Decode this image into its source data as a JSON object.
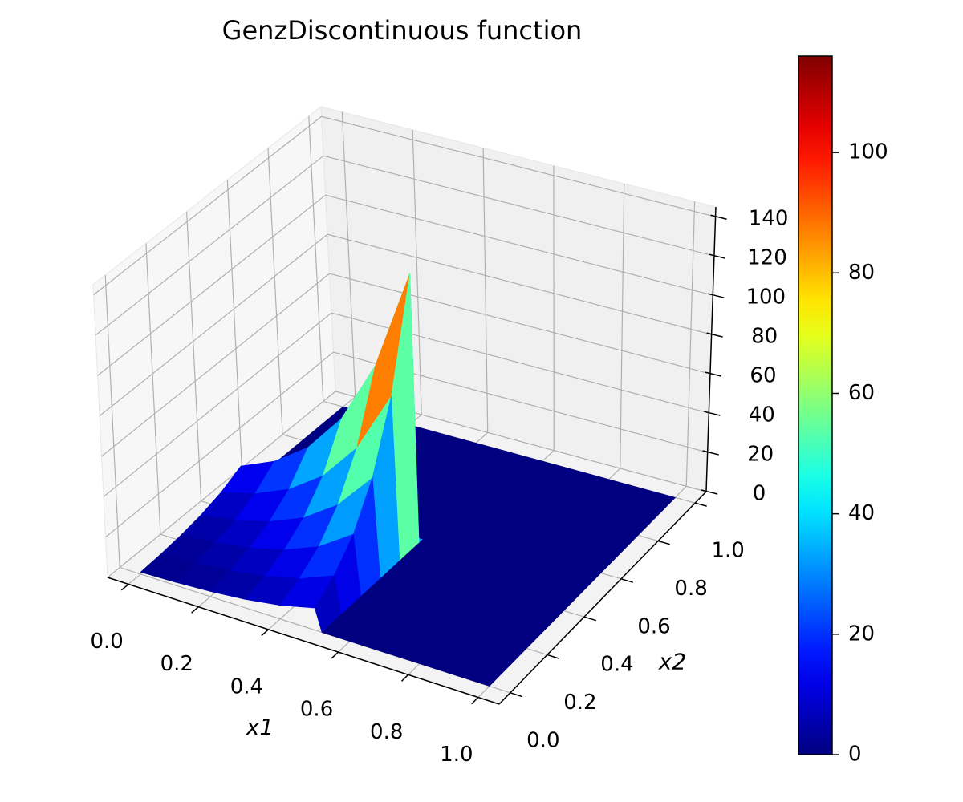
{
  "chart_data": {
    "type": "surface",
    "title": "GenzDiscontinuous function",
    "xlabel": "x1",
    "ylabel": "x2",
    "x": [
      0,
      0.1,
      0.2,
      0.3,
      0.4,
      0.5,
      0.52,
      0.6,
      0.7,
      0.8,
      0.9,
      1.0
    ],
    "y": [
      0,
      0.1,
      0.2,
      0.3,
      0.4,
      0.5,
      0.52,
      0.6,
      0.7,
      0.8,
      0.9,
      1.0
    ],
    "z": [
      [
        1.0,
        1.6,
        2.6,
        4.2,
        6.8,
        11.0,
        0,
        0,
        0,
        0,
        0,
        0
      ],
      [
        1.6,
        2.7,
        4.3,
        7.0,
        11.2,
        18.2,
        0,
        0,
        0,
        0,
        0,
        0
      ],
      [
        2.7,
        4.4,
        7.1,
        11.5,
        18.5,
        30.0,
        0,
        0,
        0,
        0,
        0,
        0
      ],
      [
        4.5,
        7.2,
        11.7,
        18.9,
        30.6,
        49.4,
        0,
        0,
        0,
        0,
        0,
        0
      ],
      [
        7.4,
        11.9,
        19.3,
        31.2,
        50.4,
        81.4,
        0,
        0,
        0,
        0,
        0,
        0
      ],
      [
        12.2,
        19.7,
        31.8,
        51.4,
        83.1,
        134.3,
        0,
        0,
        0,
        0,
        0,
        0
      ],
      [
        0,
        0,
        0,
        0,
        0,
        0,
        0,
        0,
        0,
        0,
        0,
        0
      ],
      [
        0,
        0,
        0,
        0,
        0,
        0,
        0,
        0,
        0,
        0,
        0,
        0
      ],
      [
        0,
        0,
        0,
        0,
        0,
        0,
        0,
        0,
        0,
        0,
        0,
        0
      ],
      [
        0,
        0,
        0,
        0,
        0,
        0,
        0,
        0,
        0,
        0,
        0,
        0
      ],
      [
        0,
        0,
        0,
        0,
        0,
        0,
        0,
        0,
        0,
        0,
        0,
        0
      ],
      [
        0,
        0,
        0,
        0,
        0,
        0,
        0,
        0,
        0,
        0,
        0,
        0
      ]
    ],
    "colormap": "jet",
    "xlim": [
      -0.06,
      1.06
    ],
    "ylim": [
      -0.06,
      1.06
    ],
    "zlim": [
      0,
      145
    ],
    "xticks": [
      {
        "value": 0,
        "label": "0.0"
      },
      0.2,
      0.4,
      0.6,
      0.8,
      {
        "value": 1,
        "label": "1.0"
      }
    ],
    "yticks": [
      {
        "value": 0,
        "label": "0.0"
      },
      0.2,
      0.4,
      0.6,
      0.8,
      {
        "value": 1,
        "label": "1.0"
      }
    ],
    "zticks": [
      0,
      20,
      40,
      60,
      80,
      100,
      120,
      140
    ],
    "grid": true,
    "colorbar": {
      "lim": [
        0,
        116
      ],
      "ticks": [
        0,
        20,
        40,
        60,
        80,
        100
      ]
    }
  }
}
